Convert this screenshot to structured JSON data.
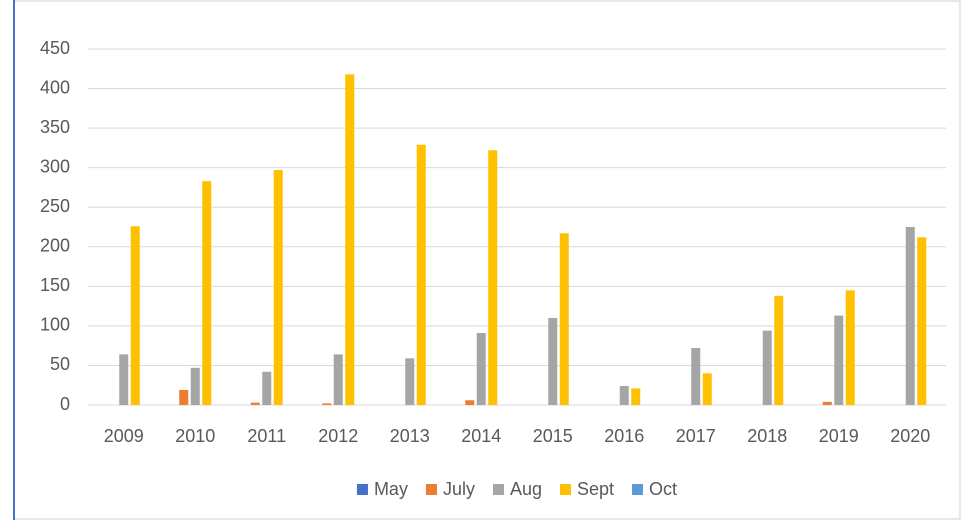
{
  "chart_data": {
    "type": "bar",
    "categories": [
      "2009",
      "2010",
      "2011",
      "2012",
      "2013",
      "2014",
      "2015",
      "2016",
      "2017",
      "2018",
      "2019",
      "2020"
    ],
    "series": [
      {
        "name": "May",
        "color": "#4472c4",
        "values": [
          0,
          0,
          0,
          0,
          0,
          0,
          0,
          0,
          0,
          0,
          0,
          0
        ]
      },
      {
        "name": "July",
        "color": "#ed7d31",
        "values": [
          0,
          19,
          3,
          2,
          0,
          6,
          0,
          0,
          0,
          0,
          4,
          0
        ]
      },
      {
        "name": "Aug",
        "color": "#a5a5a5",
        "values": [
          64,
          47,
          42,
          64,
          59,
          91,
          110,
          24,
          72,
          94,
          113,
          225
        ]
      },
      {
        "name": "Sept",
        "color": "#ffc000",
        "values": [
          226,
          283,
          297,
          418,
          329,
          322,
          217,
          21,
          40,
          138,
          145,
          212
        ]
      },
      {
        "name": "Oct",
        "color": "#5b9bd5",
        "values": [
          0,
          0,
          0,
          0,
          0,
          0,
          0,
          0,
          0,
          0,
          0,
          0
        ]
      }
    ],
    "ylim": [
      0,
      450
    ],
    "yticks": [
      0,
      50,
      100,
      150,
      200,
      250,
      300,
      350,
      400,
      450
    ],
    "grid": true,
    "legend": "bottom"
  }
}
